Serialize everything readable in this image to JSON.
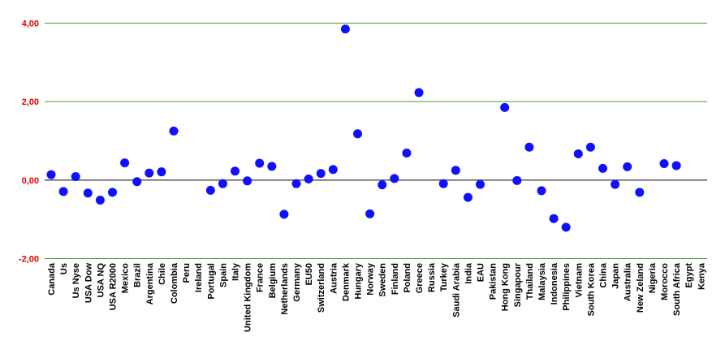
{
  "chart_data": {
    "type": "scatter",
    "categories": [
      "Canada",
      "Us",
      "Us Nyse",
      "USA Dow",
      "USA NQ",
      "USA R2000",
      "Mexico",
      "Brazil",
      "Argentina",
      "Chile",
      "Colombia",
      "Peru",
      "Ireland",
      "Portugal",
      "Spain",
      "Italy",
      "United Kingdom",
      "France",
      "Belgium",
      "Netherlands",
      "Germany",
      "EU50",
      "Switzerland",
      "Austria",
      "Denmark",
      "Hungary",
      "Norway",
      "Sweden",
      "Finland",
      "Poland",
      "Greece",
      "Russia",
      "Turkey",
      "Saudi Arabia",
      "India",
      "EAU",
      "Pakistan",
      "Hong Kong",
      "Singapour",
      "Thailand",
      "Malaysia",
      "Indonesia",
      "Philippines",
      "Vietnam",
      "South Korea",
      "China",
      "Japan",
      "Australia",
      "New Zeland",
      "Nigeria",
      "Morocco",
      "South Africa",
      "Egypt",
      "Kenya"
    ],
    "values": [
      0.14,
      -0.29,
      0.09,
      -0.33,
      -0.51,
      -0.31,
      0.44,
      -0.04,
      0.18,
      0.21,
      1.25,
      null,
      null,
      -0.26,
      -0.09,
      0.23,
      -0.02,
      0.43,
      0.35,
      -0.87,
      -0.09,
      0.03,
      0.17,
      0.27,
      3.85,
      1.18,
      -0.86,
      -0.12,
      0.04,
      0.69,
      2.23,
      null,
      -0.09,
      0.25,
      -0.44,
      -0.11,
      null,
      1.85,
      -0.01,
      0.84,
      -0.27,
      -0.98,
      -1.2,
      0.67,
      0.84,
      0.3,
      -0.11,
      0.34,
      -0.31,
      null,
      0.42,
      0.37,
      null,
      null
    ],
    "ylim": [
      -2,
      4
    ],
    "yticks": [
      "-2,00",
      "0,00",
      "2,00",
      "4,00"
    ],
    "ytick_values": [
      -2,
      0,
      2,
      4
    ],
    "grid": true,
    "colors": {
      "marker": "#1010ff",
      "grid": "#4c9a2a",
      "zero_line": "#000000",
      "ytick_text": "#e00000"
    }
  }
}
